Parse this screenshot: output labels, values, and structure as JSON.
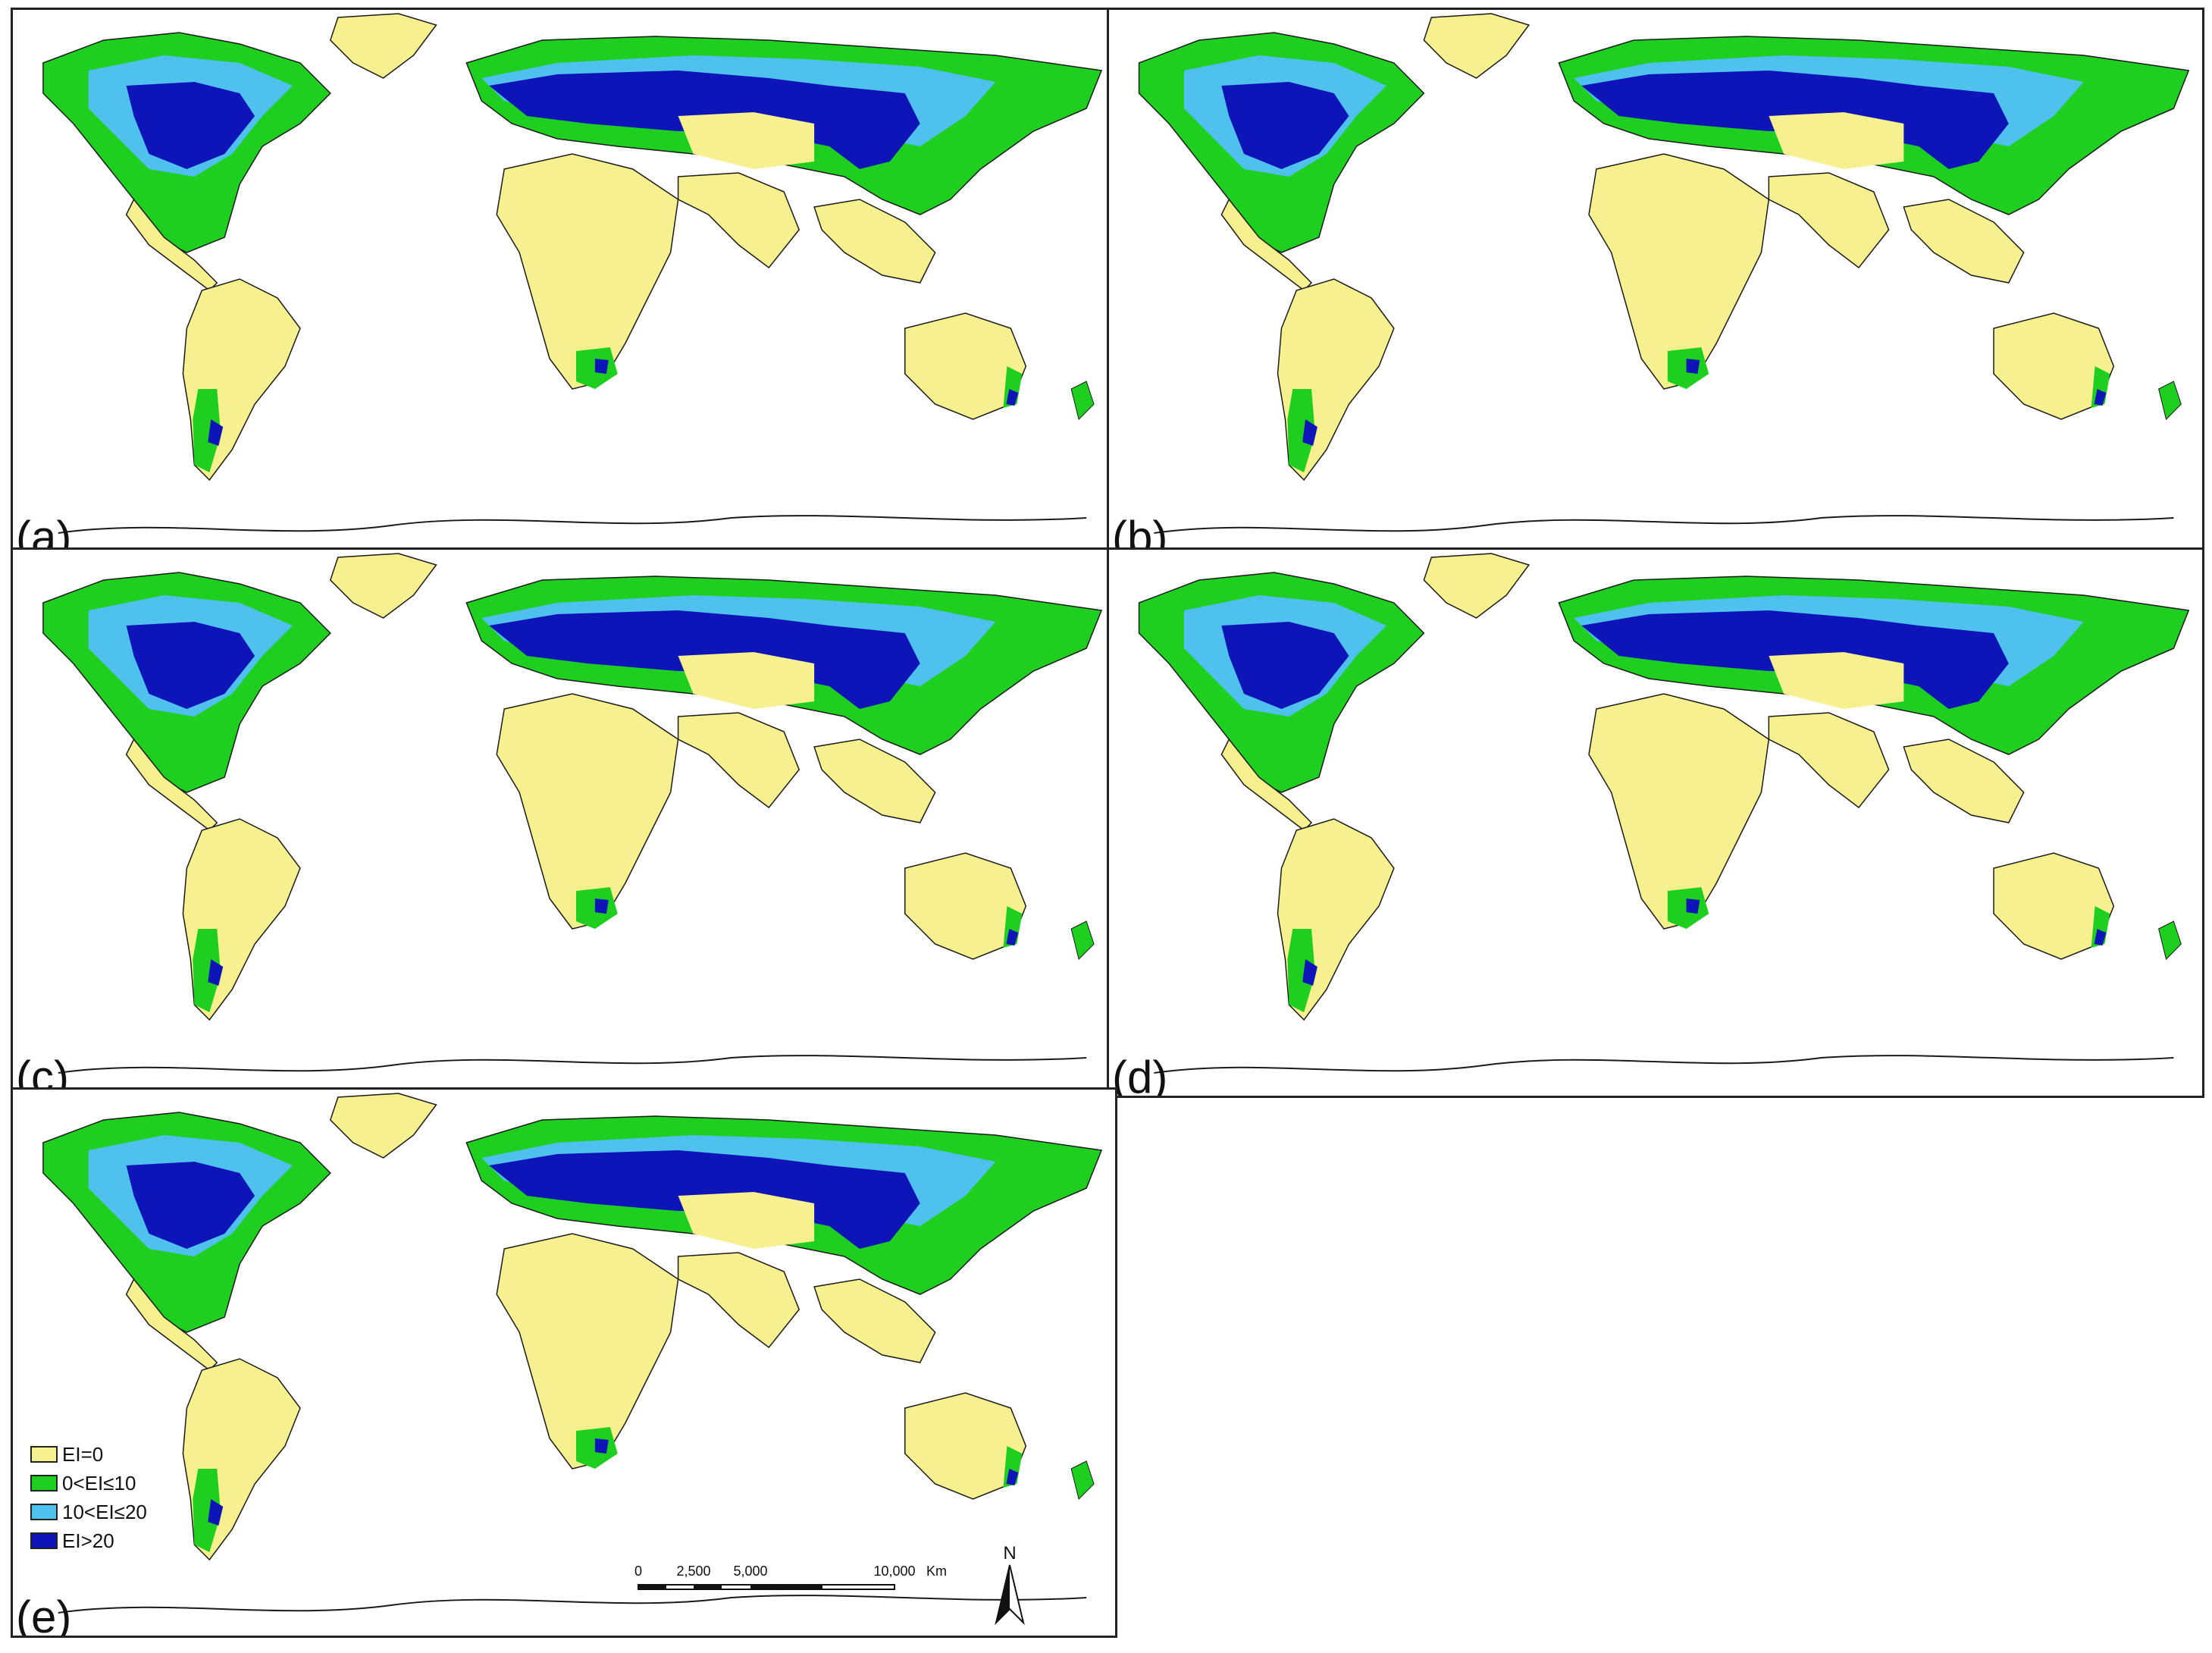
{
  "panels": [
    {
      "label": "(a)"
    },
    {
      "label": "(b)"
    },
    {
      "label": "(c)"
    },
    {
      "label": "(d)"
    },
    {
      "label": "(e)"
    }
  ],
  "legend": {
    "items": [
      {
        "label": "EI=0",
        "color": "#f7f08e"
      },
      {
        "label": "0<EI≤10",
        "color": "#1fcf1f"
      },
      {
        "label": "10<EI≤20",
        "color": "#4fc1ef"
      },
      {
        "label": "EI>20",
        "color": "#0d14b8"
      }
    ]
  },
  "scale_bar": {
    "ticks": [
      "0",
      "2,500",
      "5,000",
      "10,000"
    ],
    "unit": "Km"
  },
  "north_arrow": {
    "label": "N"
  },
  "colors": {
    "ocean": "#ffffff",
    "border": "#1a1a1a",
    "ei0": "#f7f08e",
    "ei10": "#1fcf1f",
    "ei20": "#4fc1ef",
    "ei20plus": "#0d14b8"
  }
}
